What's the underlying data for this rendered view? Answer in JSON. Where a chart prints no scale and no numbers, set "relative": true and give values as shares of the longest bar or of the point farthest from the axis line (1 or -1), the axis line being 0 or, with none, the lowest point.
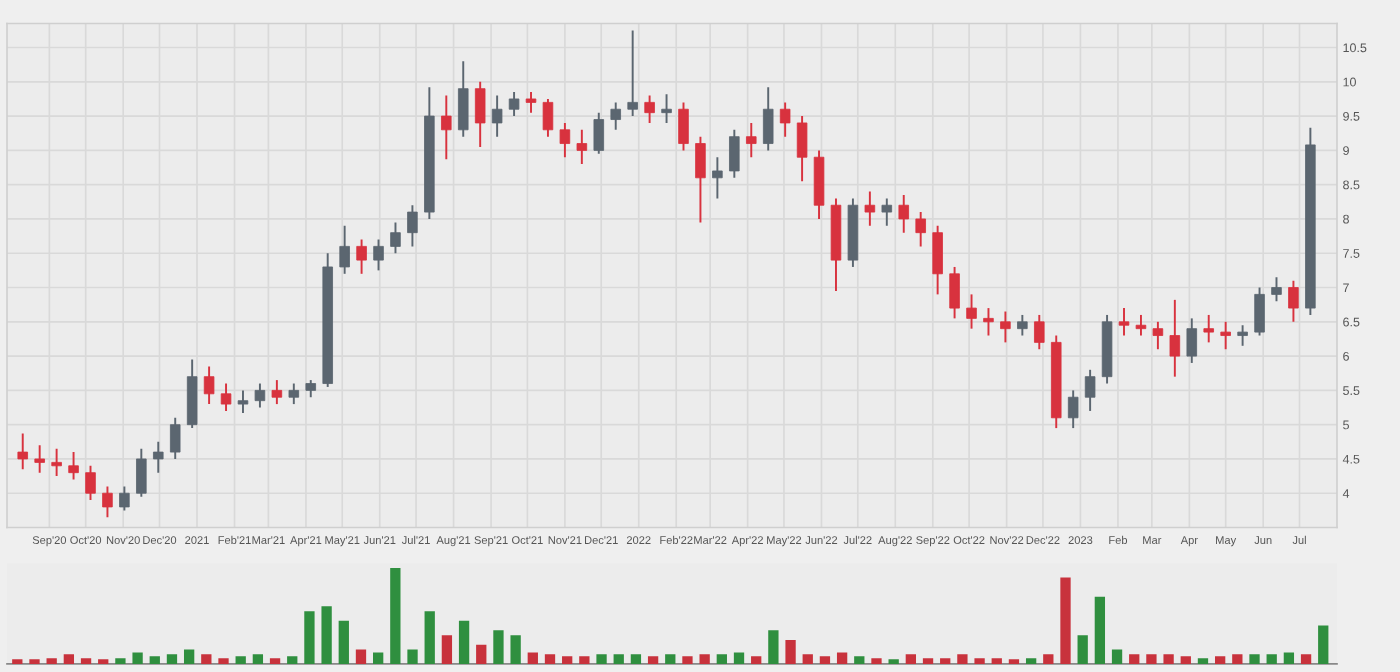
{
  "chart_data": [
    {
      "type": "candlestick",
      "x": [
        "2020-08-10",
        "2020-08-24",
        "2020-09-07",
        "2020-09-21",
        "2020-10-05",
        "2020-10-19",
        "2020-11-02",
        "2020-11-16",
        "2020-11-30",
        "2020-12-14",
        "2020-12-28",
        "2021-01-11",
        "2021-01-25",
        "2021-02-08",
        "2021-02-22",
        "2021-03-08",
        "2021-03-22",
        "2021-04-05",
        "2021-04-19",
        "2021-05-03",
        "2021-05-17",
        "2021-05-31",
        "2021-06-14",
        "2021-06-28",
        "2021-07-12",
        "2021-07-26",
        "2021-08-09",
        "2021-08-23",
        "2021-09-06",
        "2021-09-20",
        "2021-10-04",
        "2021-10-18",
        "2021-11-01",
        "2021-11-15",
        "2021-11-29",
        "2021-12-13",
        "2021-12-27",
        "2022-01-10",
        "2022-01-24",
        "2022-02-07",
        "2022-02-21",
        "2022-03-07",
        "2022-03-21",
        "2022-04-04",
        "2022-04-18",
        "2022-05-02",
        "2022-05-16",
        "2022-05-30",
        "2022-06-13",
        "2022-06-27",
        "2022-07-11",
        "2022-07-25",
        "2022-08-08",
        "2022-08-22",
        "2022-09-05",
        "2022-09-19",
        "2022-10-03",
        "2022-10-17",
        "2022-10-31",
        "2022-11-14",
        "2022-11-28",
        "2022-12-12",
        "2022-12-26",
        "2023-01-09",
        "2023-01-23",
        "2023-02-06",
        "2023-02-20",
        "2023-03-06",
        "2023-03-20",
        "2023-04-03",
        "2023-04-17",
        "2023-05-01",
        "2023-05-15",
        "2023-05-29",
        "2023-06-12",
        "2023-06-26",
        "2023-07-10"
      ],
      "ohlc": [
        [
          4.6,
          4.87,
          4.35,
          4.5
        ],
        [
          4.5,
          4.7,
          4.3,
          4.45
        ],
        [
          4.45,
          4.65,
          4.25,
          4.4
        ],
        [
          4.4,
          4.6,
          4.2,
          4.3
        ],
        [
          4.3,
          4.4,
          3.9,
          4.0
        ],
        [
          4.0,
          4.1,
          3.65,
          3.8
        ],
        [
          3.8,
          4.1,
          3.75,
          4.0
        ],
        [
          4.0,
          4.65,
          3.95,
          4.5
        ],
        [
          4.5,
          4.75,
          4.3,
          4.6
        ],
        [
          4.6,
          5.1,
          4.5,
          5.0
        ],
        [
          5.0,
          5.95,
          4.95,
          5.7
        ],
        [
          5.7,
          5.85,
          5.3,
          5.45
        ],
        [
          5.45,
          5.6,
          5.2,
          5.3
        ],
        [
          5.3,
          5.5,
          5.17,
          5.35
        ],
        [
          5.35,
          5.6,
          5.25,
          5.5
        ],
        [
          5.5,
          5.65,
          5.3,
          5.4
        ],
        [
          5.4,
          5.6,
          5.3,
          5.5
        ],
        [
          5.5,
          5.65,
          5.4,
          5.6
        ],
        [
          5.6,
          7.5,
          5.55,
          7.3
        ],
        [
          7.3,
          7.9,
          7.2,
          7.6
        ],
        [
          7.6,
          7.7,
          7.2,
          7.4
        ],
        [
          7.4,
          7.7,
          7.25,
          7.6
        ],
        [
          7.6,
          7.95,
          7.5,
          7.8
        ],
        [
          7.8,
          8.2,
          7.6,
          8.1
        ],
        [
          8.1,
          9.92,
          8.0,
          9.5
        ],
        [
          9.5,
          9.8,
          8.87,
          9.3
        ],
        [
          9.3,
          10.3,
          9.2,
          9.9
        ],
        [
          9.9,
          10.0,
          9.05,
          9.4
        ],
        [
          9.4,
          9.8,
          9.2,
          9.6
        ],
        [
          9.6,
          9.85,
          9.5,
          9.75
        ],
        [
          9.75,
          9.85,
          9.55,
          9.7
        ],
        [
          9.7,
          9.75,
          9.2,
          9.3
        ],
        [
          9.3,
          9.4,
          8.9,
          9.1
        ],
        [
          9.1,
          9.3,
          8.8,
          9.0
        ],
        [
          9.0,
          9.55,
          8.95,
          9.45
        ],
        [
          9.45,
          9.7,
          9.3,
          9.6
        ],
        [
          9.6,
          10.75,
          9.5,
          9.7
        ],
        [
          9.7,
          9.8,
          9.4,
          9.55
        ],
        [
          9.55,
          9.82,
          9.4,
          9.6
        ],
        [
          9.6,
          9.7,
          9.0,
          9.1
        ],
        [
          9.1,
          9.2,
          7.95,
          8.6
        ],
        [
          8.6,
          8.9,
          8.3,
          8.7
        ],
        [
          8.7,
          9.3,
          8.6,
          9.2
        ],
        [
          9.2,
          9.4,
          8.9,
          9.1
        ],
        [
          9.1,
          9.92,
          9.0,
          9.6
        ],
        [
          9.6,
          9.7,
          9.2,
          9.4
        ],
        [
          9.4,
          9.5,
          8.55,
          8.9
        ],
        [
          8.9,
          9.0,
          8.0,
          8.2
        ],
        [
          8.2,
          8.3,
          6.95,
          7.4
        ],
        [
          7.4,
          8.3,
          7.3,
          8.2
        ],
        [
          8.2,
          8.4,
          7.9,
          8.1
        ],
        [
          8.1,
          8.3,
          7.9,
          8.2
        ],
        [
          8.2,
          8.35,
          7.8,
          8.0
        ],
        [
          8.0,
          8.1,
          7.6,
          7.8
        ],
        [
          7.8,
          7.9,
          6.9,
          7.2
        ],
        [
          7.2,
          7.3,
          6.55,
          6.7
        ],
        [
          6.7,
          6.9,
          6.4,
          6.55
        ],
        [
          6.55,
          6.7,
          6.3,
          6.5
        ],
        [
          6.5,
          6.65,
          6.2,
          6.4
        ],
        [
          6.4,
          6.6,
          6.3,
          6.5
        ],
        [
          6.5,
          6.6,
          6.1,
          6.2
        ],
        [
          6.2,
          6.3,
          4.95,
          5.1
        ],
        [
          5.1,
          5.5,
          4.95,
          5.4
        ],
        [
          5.4,
          5.8,
          5.2,
          5.7
        ],
        [
          5.7,
          6.6,
          5.6,
          6.5
        ],
        [
          6.5,
          6.7,
          6.3,
          6.45
        ],
        [
          6.45,
          6.6,
          6.3,
          6.4
        ],
        [
          6.4,
          6.5,
          6.1,
          6.3
        ],
        [
          6.3,
          6.82,
          5.7,
          6.0
        ],
        [
          6.0,
          6.55,
          5.9,
          6.4
        ],
        [
          6.4,
          6.6,
          6.2,
          6.35
        ],
        [
          6.35,
          6.5,
          6.1,
          6.3
        ],
        [
          6.3,
          6.45,
          6.15,
          6.35
        ],
        [
          6.35,
          7.0,
          6.3,
          6.9
        ],
        [
          6.9,
          7.15,
          6.8,
          7.0
        ],
        [
          7.0,
          7.1,
          6.5,
          6.7
        ],
        [
          6.7,
          9.33,
          6.6,
          9.08
        ]
      ],
      "colors": [
        "#d8323e",
        "#d8323e",
        "#d8323e",
        "#d8323e",
        "#d8323e",
        "#d8323e",
        "#5b6670",
        "#5b6670",
        "#5b6670",
        "#5b6670",
        "#5b6670",
        "#d8323e",
        "#d8323e",
        "#5b6670",
        "#5b6670",
        "#d8323e",
        "#5b6670",
        "#5b6670",
        "#5b6670",
        "#5b6670",
        "#d8323e",
        "#5b6670",
        "#5b6670",
        "#5b6670",
        "#5b6670",
        "#d8323e",
        "#5b6670",
        "#d8323e",
        "#5b6670",
        "#5b6670",
        "#d8323e",
        "#d8323e",
        "#d8323e",
        "#d8323e",
        "#5b6670",
        "#5b6670",
        "#5b6670",
        "#d8323e",
        "#5b6670",
        "#d8323e",
        "#d8323e",
        "#5b6670",
        "#5b6670",
        "#d8323e",
        "#5b6670",
        "#d8323e",
        "#d8323e",
        "#d8323e",
        "#d8323e",
        "#5b6670",
        "#d8323e",
        "#5b6670",
        "#d8323e",
        "#d8323e",
        "#d8323e",
        "#d8323e",
        "#d8323e",
        "#d8323e",
        "#d8323e",
        "#5b6670",
        "#d8323e",
        "#d8323e",
        "#5b6670",
        "#5b6670",
        "#5b6670",
        "#d8323e",
        "#d8323e",
        "#d8323e",
        "#d8323e",
        "#5b6670",
        "#d8323e",
        "#d8323e",
        "#5b6670",
        "#5b6670",
        "#5b6670",
        "#d8323e",
        "#5b6670"
      ],
      "xlim": [
        "2020-07-28",
        "2023-08-01"
      ],
      "xticks": [
        {
          "value": "2020-09-01",
          "label": "Sep'20"
        },
        {
          "value": "2020-10-01",
          "label": "Oct'20"
        },
        {
          "value": "2020-11-01",
          "label": "Nov'20"
        },
        {
          "value": "2020-12-01",
          "label": "Dec'20"
        },
        {
          "value": "2021-01-01",
          "label": "2021"
        },
        {
          "value": "2021-02-01",
          "label": "Feb'21"
        },
        {
          "value": "2021-03-01",
          "label": "Mar'21"
        },
        {
          "value": "2021-04-01",
          "label": "Apr'21"
        },
        {
          "value": "2021-05-01",
          "label": "May'21"
        },
        {
          "value": "2021-06-01",
          "label": "Jun'21"
        },
        {
          "value": "2021-07-01",
          "label": "Jul'21"
        },
        {
          "value": "2021-08-01",
          "label": "Aug'21"
        },
        {
          "value": "2021-09-01",
          "label": "Sep'21"
        },
        {
          "value": "2021-10-01",
          "label": "Oct'21"
        },
        {
          "value": "2021-11-01",
          "label": "Nov'21"
        },
        {
          "value": "2021-12-01",
          "label": "Dec'21"
        },
        {
          "value": "2022-01-01",
          "label": "2022"
        },
        {
          "value": "2022-02-01",
          "label": "Feb'22"
        },
        {
          "value": "2022-03-01",
          "label": "Mar'22"
        },
        {
          "value": "2022-04-01",
          "label": "Apr'22"
        },
        {
          "value": "2022-05-01",
          "label": "May'22"
        },
        {
          "value": "2022-06-01",
          "label": "Jun'22"
        },
        {
          "value": "2022-07-01",
          "label": "Jul'22"
        },
        {
          "value": "2022-08-01",
          "label": "Aug'22"
        },
        {
          "value": "2022-09-01",
          "label": "Sep'22"
        },
        {
          "value": "2022-10-01",
          "label": "Oct'22"
        },
        {
          "value": "2022-11-01",
          "label": "Nov'22"
        },
        {
          "value": "2022-12-01",
          "label": "Dec'22"
        },
        {
          "value": "2023-01-01",
          "label": "2023"
        },
        {
          "value": "2023-02-01",
          "label": "Feb"
        },
        {
          "value": "2023-03-01",
          "label": "Mar"
        },
        {
          "value": "2023-04-01",
          "label": "Apr"
        },
        {
          "value": "2023-05-01",
          "label": "May"
        },
        {
          "value": "2023-06-01",
          "label": "Jun"
        },
        {
          "value": "2023-07-01",
          "label": "Jul"
        }
      ],
      "ylim": [
        3.5,
        10.85
      ],
      "yticks": [
        4,
        4.5,
        5,
        5.5,
        6,
        6.5,
        7,
        7.5,
        8,
        8.5,
        9,
        9.5,
        10,
        10.5
      ],
      "grid": true
    },
    {
      "type": "bar",
      "relative": true,
      "values": [
        0.05,
        0.05,
        0.06,
        0.1,
        0.06,
        0.05,
        0.06,
        0.12,
        0.08,
        0.1,
        0.15,
        0.1,
        0.06,
        0.08,
        0.1,
        0.06,
        0.08,
        0.55,
        0.6,
        0.45,
        0.15,
        0.12,
        1.0,
        0.15,
        0.55,
        0.3,
        0.45,
        0.2,
        0.35,
        0.3,
        0.12,
        0.1,
        0.08,
        0.08,
        0.1,
        0.1,
        0.1,
        0.08,
        0.1,
        0.08,
        0.1,
        0.1,
        0.12,
        0.08,
        0.35,
        0.25,
        0.1,
        0.08,
        0.12,
        0.08,
        0.06,
        0.05,
        0.1,
        0.06,
        0.06,
        0.1,
        0.06,
        0.06,
        0.05,
        0.06,
        0.1,
        0.9,
        0.3,
        0.7,
        0.15,
        0.1,
        0.1,
        0.1,
        0.08,
        0.06,
        0.08,
        0.1,
        0.1,
        0.1,
        0.12,
        0.1,
        0.4
      ],
      "colors": [
        "#c8323c",
        "#c8323c",
        "#c8323c",
        "#c8323c",
        "#c8323c",
        "#c8323c",
        "#2f8f3f",
        "#2f8f3f",
        "#2f8f3f",
        "#2f8f3f",
        "#2f8f3f",
        "#c8323c",
        "#c8323c",
        "#2f8f3f",
        "#2f8f3f",
        "#c8323c",
        "#2f8f3f",
        "#2f8f3f",
        "#2f8f3f",
        "#2f8f3f",
        "#c8323c",
        "#2f8f3f",
        "#2f8f3f",
        "#2f8f3f",
        "#2f8f3f",
        "#c8323c",
        "#2f8f3f",
        "#c8323c",
        "#2f8f3f",
        "#2f8f3f",
        "#c8323c",
        "#c8323c",
        "#c8323c",
        "#c8323c",
        "#2f8f3f",
        "#2f8f3f",
        "#2f8f3f",
        "#c8323c",
        "#2f8f3f",
        "#c8323c",
        "#c8323c",
        "#2f8f3f",
        "#2f8f3f",
        "#c8323c",
        "#2f8f3f",
        "#c8323c",
        "#c8323c",
        "#c8323c",
        "#c8323c",
        "#2f8f3f",
        "#c8323c",
        "#2f8f3f",
        "#c8323c",
        "#c8323c",
        "#c8323c",
        "#c8323c",
        "#c8323c",
        "#c8323c",
        "#c8323c",
        "#2f8f3f",
        "#c8323c",
        "#c8323c",
        "#2f8f3f",
        "#2f8f3f",
        "#2f8f3f",
        "#c8323c",
        "#c8323c",
        "#c8323c",
        "#c8323c",
        "#2f8f3f",
        "#c8323c",
        "#c8323c",
        "#2f8f3f",
        "#2f8f3f",
        "#2f8f3f",
        "#c8323c",
        "#2f8f3f"
      ],
      "categories": [
        null,
        null,
        null,
        null,
        null,
        null,
        null,
        null,
        null,
        null,
        null,
        null,
        null,
        null,
        null,
        null,
        null,
        null,
        null,
        null,
        null,
        null,
        null,
        null,
        null,
        null,
        null,
        null,
        null,
        null,
        null,
        null,
        null,
        null,
        null,
        null,
        null,
        null,
        null,
        null,
        null,
        null,
        null,
        null,
        null,
        null,
        null,
        null,
        null,
        null,
        null,
        null,
        null,
        null,
        null,
        null,
        null,
        null,
        null,
        null,
        null,
        null,
        null,
        null,
        null,
        null,
        null,
        null,
        null,
        null,
        null,
        null,
        null,
        null,
        null,
        null,
        null
      ]
    }
  ]
}
